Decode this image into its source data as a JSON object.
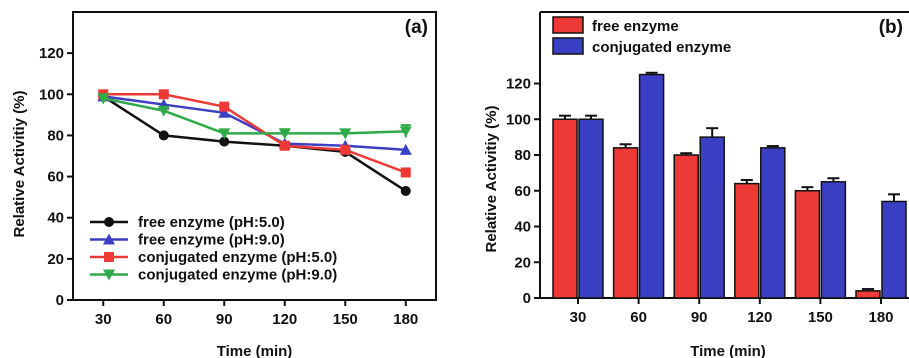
{
  "chart_data": [
    {
      "type": "line",
      "panel_label": "(a)",
      "xlabel": "Time (min)",
      "ylabel": "Relative  Activitiy (%)",
      "x": [
        30,
        60,
        90,
        120,
        150,
        180
      ],
      "xlim": [
        15,
        195
      ],
      "ylim": [
        0,
        140
      ],
      "yticks": [
        0,
        20,
        40,
        60,
        80,
        100,
        120
      ],
      "grid": false,
      "legend_position": "bottom-left",
      "series": [
        {
          "name": "free enzyme (pH:5.0)",
          "color": "#111111",
          "marker": "circle",
          "values": [
            99,
            80,
            77,
            75,
            72,
            53
          ],
          "errors": [
            0,
            0,
            0,
            0,
            0,
            0
          ]
        },
        {
          "name": "free enzyme (pH:9.0)",
          "color": "#3b3fc4",
          "marker": "triangle-up",
          "values": [
            99,
            95,
            91,
            76,
            75,
            73
          ],
          "errors": [
            0,
            0,
            0,
            0,
            0,
            0
          ]
        },
        {
          "name": "conjugated enzyme (pH:5.0)",
          "color": "#ee3a36",
          "marker": "square",
          "values": [
            100,
            100,
            94,
            75,
            73,
            62
          ],
          "errors": [
            0,
            0,
            0,
            0,
            0,
            0
          ]
        },
        {
          "name": "conjugated enzyme (pH:9.0)",
          "color": "#2faa48",
          "marker": "triangle-down",
          "values": [
            98,
            92,
            81,
            81,
            81,
            82
          ],
          "errors": [
            0,
            0,
            0,
            2,
            0,
            3
          ]
        }
      ]
    },
    {
      "type": "bar",
      "panel_label": "(b)",
      "xlabel": "Time (min)",
      "ylabel": "Relative  Activitiy (%)",
      "categories": [
        "30",
        "60",
        "90",
        "120",
        "150",
        "180"
      ],
      "ylim": [
        0,
        160
      ],
      "yticks": [
        0,
        20,
        40,
        60,
        80,
        100,
        120
      ],
      "grid": false,
      "legend_position": "top-left",
      "series": [
        {
          "name": "free enzyme",
          "color": "#ee3a36",
          "values": [
            100,
            84,
            80,
            64,
            60,
            4
          ],
          "errors": [
            2,
            2,
            1,
            2,
            2,
            1
          ]
        },
        {
          "name": "conjugated enzyme",
          "color": "#3b3fc4",
          "values": [
            100,
            125,
            90,
            84,
            65,
            54
          ],
          "errors": [
            2,
            1,
            5,
            1,
            2,
            4
          ]
        }
      ]
    }
  ]
}
